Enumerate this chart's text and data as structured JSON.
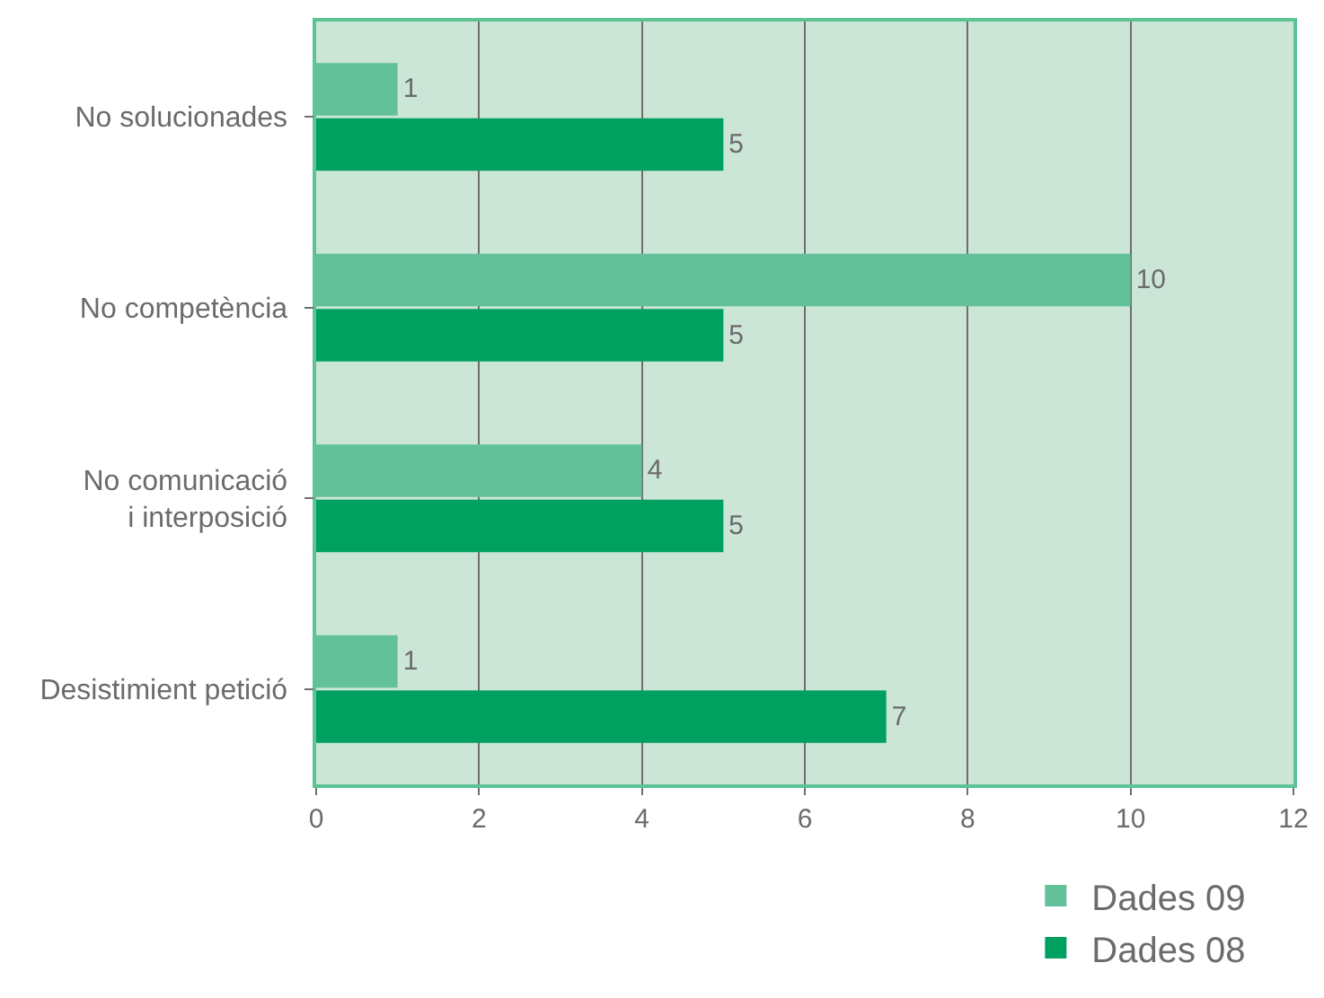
{
  "chart_data": {
    "type": "bar",
    "orientation": "horizontal",
    "categories": [
      "No solucionades",
      "No competència",
      "No comunicació i interposició",
      "Desistimient petició"
    ],
    "series": [
      {
        "name": "Dades 09",
        "color": "#62c198",
        "values": [
          1,
          10,
          4,
          1
        ]
      },
      {
        "name": "Dades 08",
        "color": "#00a160",
        "values": [
          5,
          5,
          5,
          7
        ]
      }
    ],
    "xlim": [
      0,
      12
    ],
    "xticks": [
      0,
      2,
      4,
      6,
      8,
      10,
      12
    ],
    "grid": "x",
    "legend": "bottom right",
    "data_labels": true
  }
}
